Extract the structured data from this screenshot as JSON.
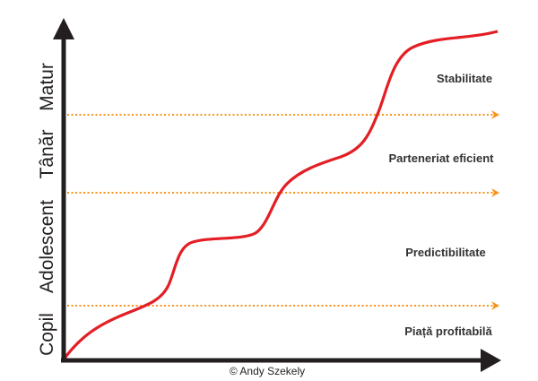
{
  "stages": [
    "Copil",
    "Adolescent",
    "Tânăr",
    "Matur"
  ],
  "zones": [
    "Piață profitabilă",
    "Predictibilitate",
    "Parteneriat eficient",
    "Stabilitate"
  ],
  "copyright": "© Andy Szekely",
  "colors": {
    "curve": "#e31e24",
    "threshold": "#f7941d",
    "axis": "#231f20"
  }
}
